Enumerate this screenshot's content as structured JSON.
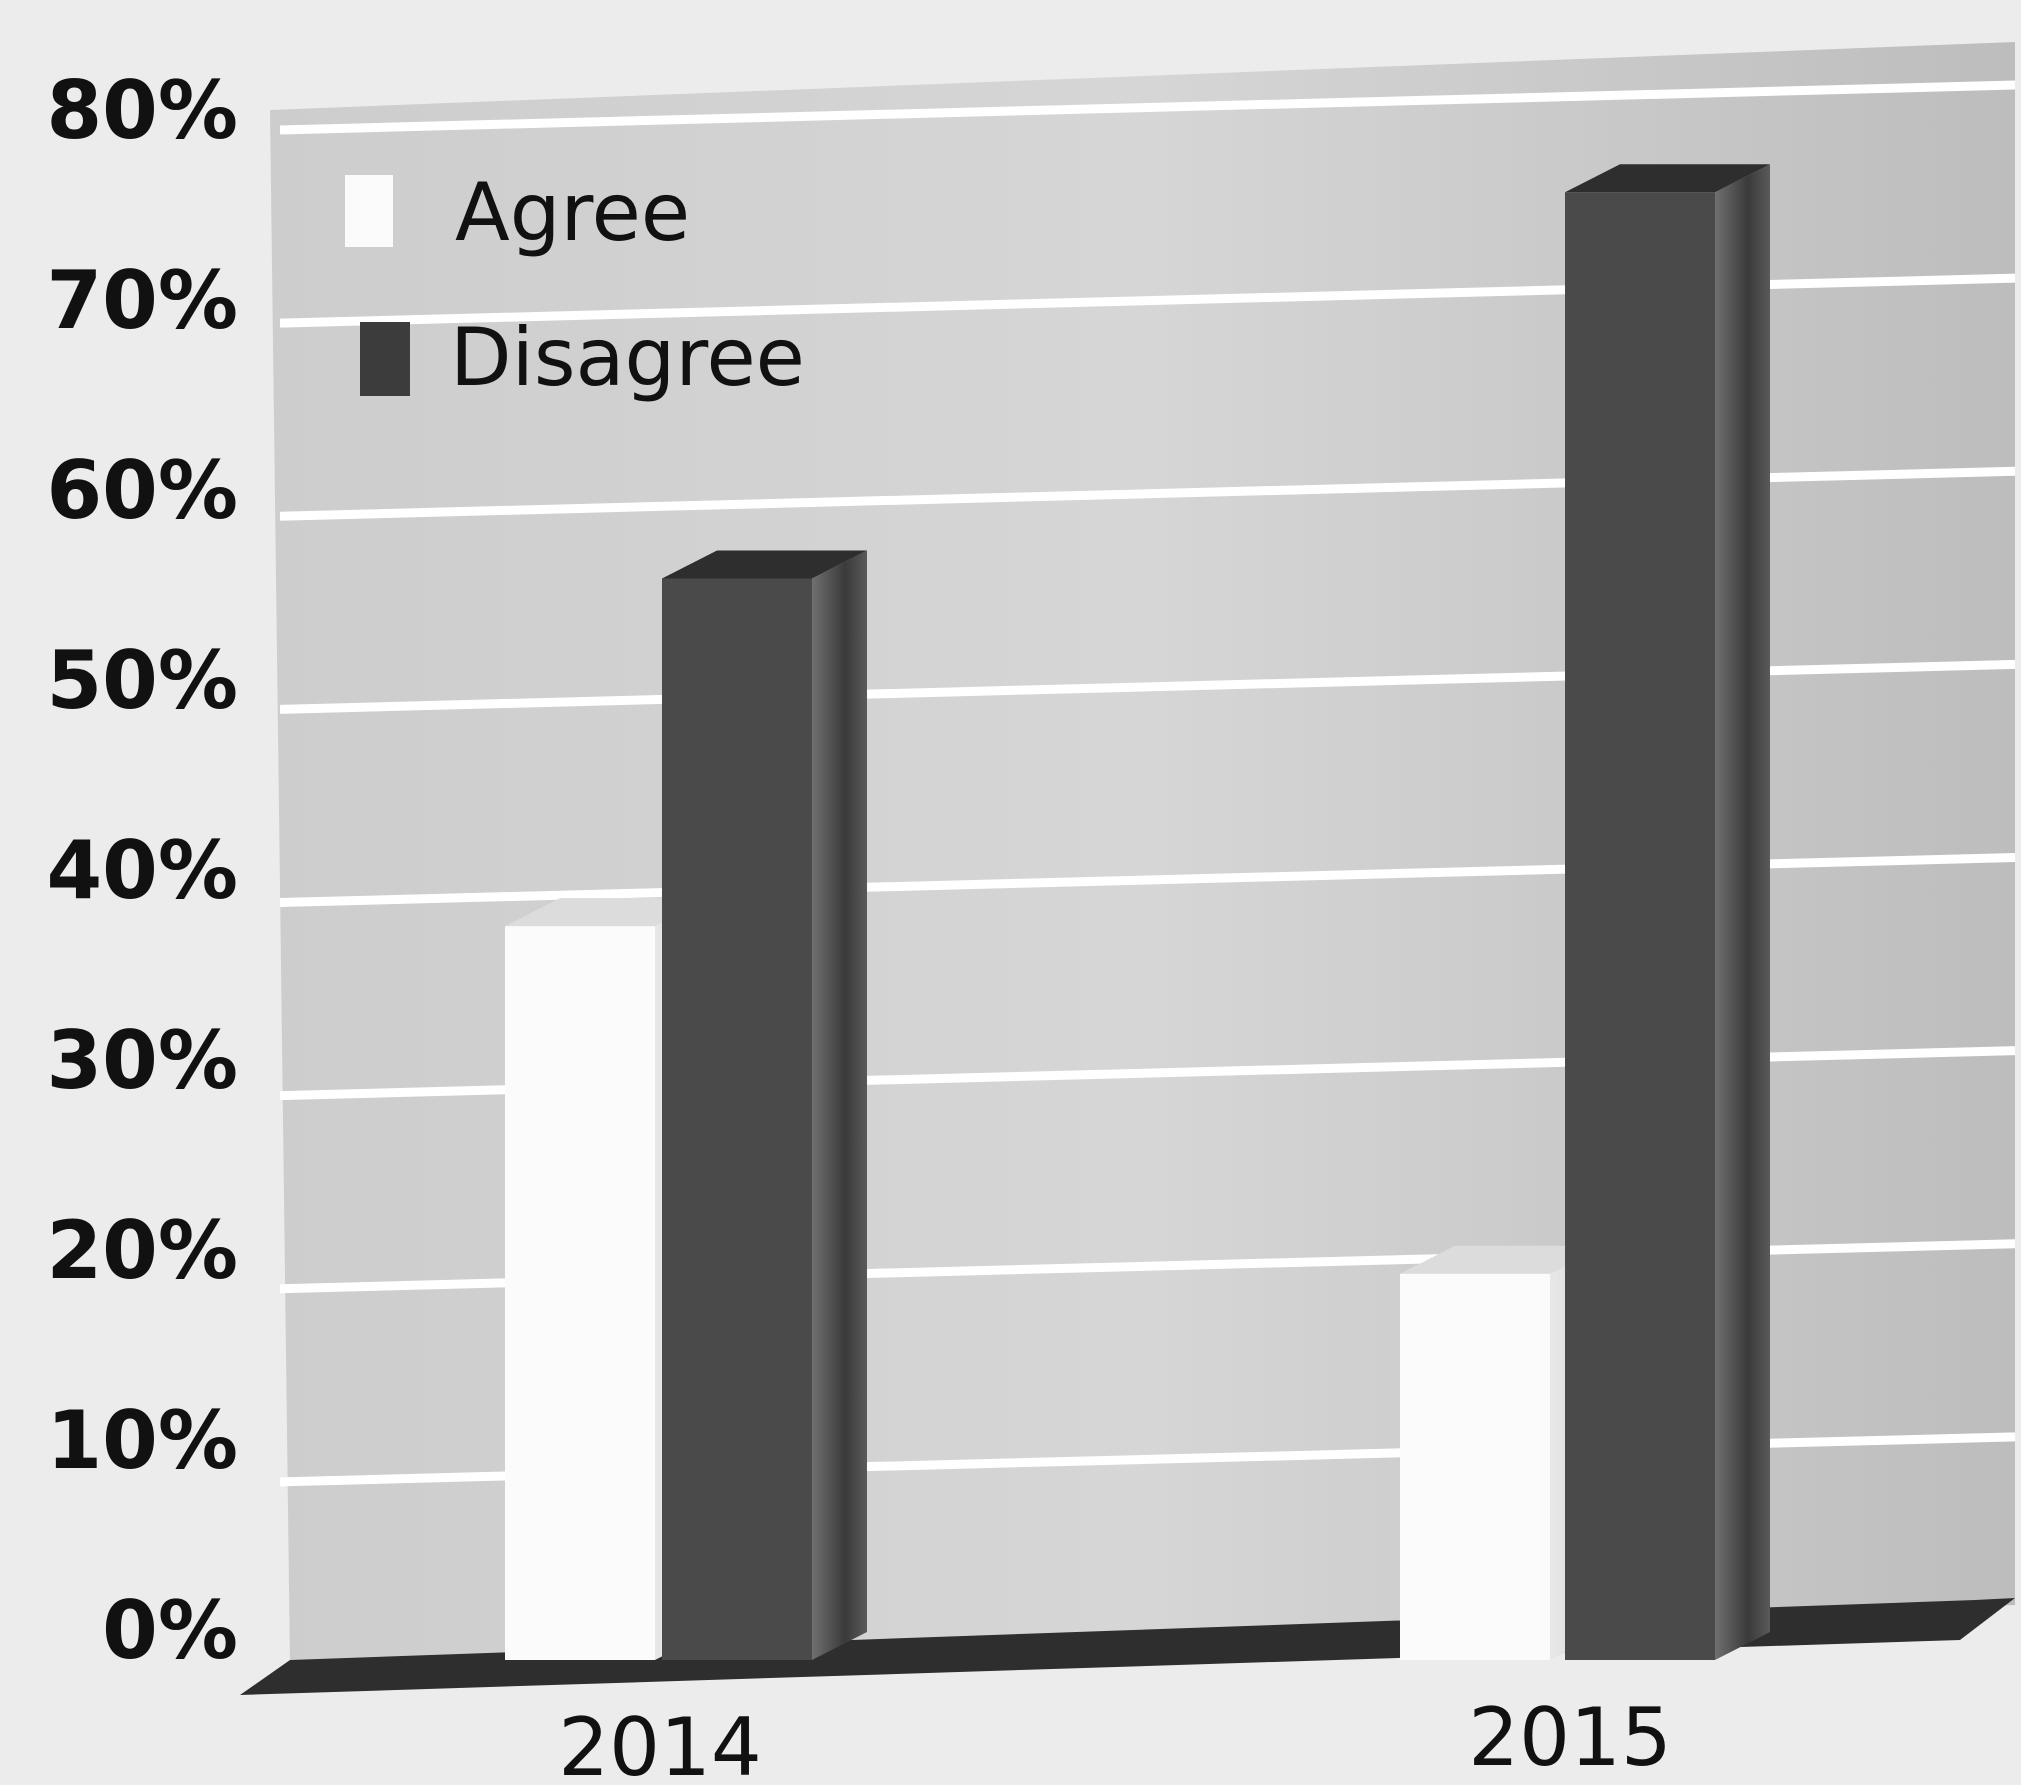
{
  "chart_data": {
    "type": "bar",
    "categories": [
      "2014",
      "2015"
    ],
    "series": [
      {
        "name": "Agree",
        "values": [
          38,
          20
        ]
      },
      {
        "name": "Disagree",
        "values": [
          56,
          76
        ]
      }
    ],
    "ylim": [
      0,
      80
    ],
    "yticks": [
      "0%",
      "10%",
      "20%",
      "30%",
      "40%",
      "50%",
      "60%",
      "70%",
      "80%"
    ],
    "grid": true,
    "legend_position": "top-left",
    "colors": {
      "agree": "#fbfbfb",
      "disagree": "#4a4a4a",
      "wall": "#c4c4c4",
      "floor": "#2e2e2e",
      "gridline": "#ffffff",
      "text": "#111111"
    }
  }
}
